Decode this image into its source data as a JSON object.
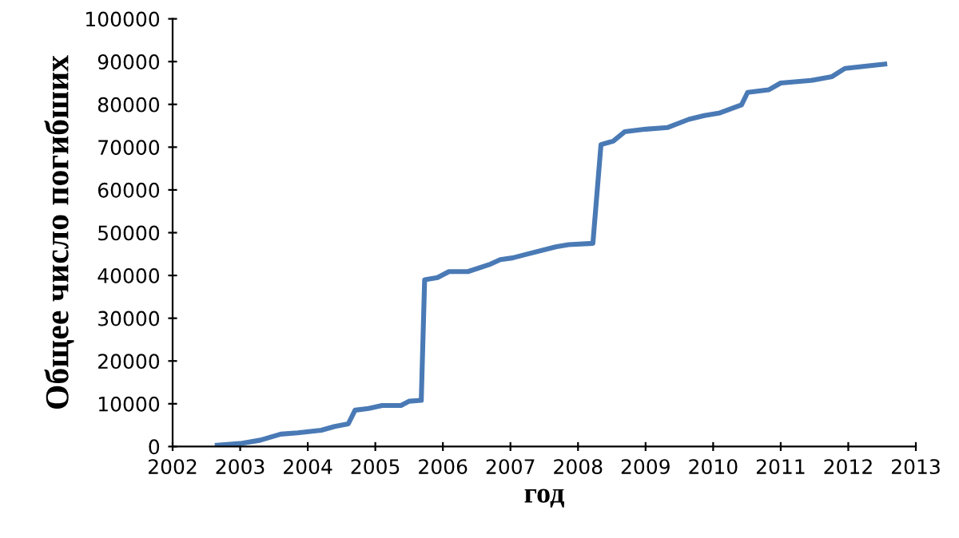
{
  "chart_data": {
    "type": "line",
    "xlabel": "год",
    "ylabel": "Общее число погибших",
    "x": [
      2002.66,
      2003.0,
      2003.3,
      2003.6,
      2003.85,
      2004.2,
      2004.4,
      2004.6,
      2004.7,
      2004.9,
      2005.1,
      2005.38,
      2005.5,
      2005.68,
      2005.73,
      2005.92,
      2006.09,
      2006.37,
      2006.68,
      2006.85,
      2007.03,
      2007.2,
      2007.67,
      2007.86,
      2008.22,
      2008.34,
      2008.52,
      2008.69,
      2009.0,
      2009.33,
      2009.64,
      2009.87,
      2010.1,
      2010.42,
      2010.51,
      2010.82,
      2011.0,
      2011.45,
      2011.76,
      2011.95,
      2012.3,
      2012.54
    ],
    "series": [
      {
        "color": "#4a7ab5",
        "values": [
          300,
          700,
          1500,
          2900,
          3200,
          3800,
          4700,
          5300,
          8500,
          8900,
          9600,
          9600,
          10600,
          10800,
          39000,
          39500,
          40900,
          40900,
          42500,
          43700,
          44100,
          44800,
          46700,
          47200,
          47500,
          70600,
          71400,
          73600,
          74200,
          74600,
          76500,
          77400,
          78000,
          79900,
          82800,
          83400,
          85000,
          85600,
          86500,
          88400,
          89000,
          89400
        ]
      }
    ],
    "xlim": [
      2002,
      2013
    ],
    "xticks": [
      2002,
      2003,
      2004,
      2005,
      2006,
      2007,
      2008,
      2009,
      2010,
      2011,
      2012,
      2013
    ],
    "ylim": [
      0,
      100000
    ],
    "yticks": [
      0,
      10000,
      20000,
      30000,
      40000,
      50000,
      60000,
      70000,
      80000,
      90000,
      100000
    ],
    "grid": false,
    "legend": false,
    "marker": "none",
    "line_style": "solid"
  }
}
